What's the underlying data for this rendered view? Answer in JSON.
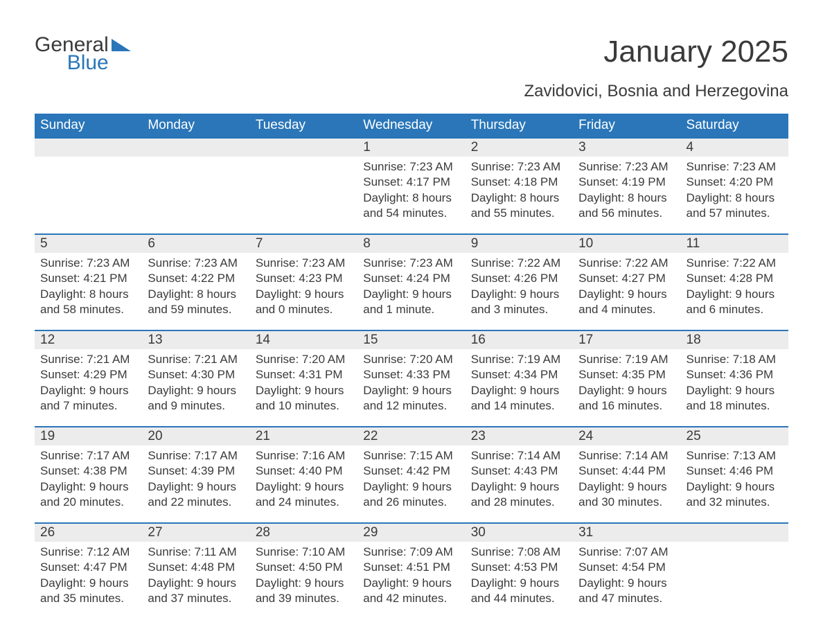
{
  "brand": {
    "word1": "General",
    "word2": "Blue"
  },
  "title": "January 2025",
  "location": "Zavidovici, Bosnia and Herzegovina",
  "colors": {
    "accent": "#2a76b9",
    "row_bg": "#ececec",
    "text": "#3a3a3a",
    "background": "#ffffff",
    "header_text": "#ffffff"
  },
  "calendar": {
    "type": "table",
    "day_headers": [
      "Sunday",
      "Monday",
      "Tuesday",
      "Wednesday",
      "Thursday",
      "Friday",
      "Saturday"
    ],
    "header_fontsize": 19,
    "daynum_fontsize": 19,
    "body_fontsize": 17,
    "row_border_top_width": 2,
    "weeks": [
      [
        null,
        null,
        null,
        {
          "n": "1",
          "sunrise": "Sunrise: 7:23 AM",
          "sunset": "Sunset: 4:17 PM",
          "d1": "Daylight: 8 hours",
          "d2": "and 54 minutes."
        },
        {
          "n": "2",
          "sunrise": "Sunrise: 7:23 AM",
          "sunset": "Sunset: 4:18 PM",
          "d1": "Daylight: 8 hours",
          "d2": "and 55 minutes."
        },
        {
          "n": "3",
          "sunrise": "Sunrise: 7:23 AM",
          "sunset": "Sunset: 4:19 PM",
          "d1": "Daylight: 8 hours",
          "d2": "and 56 minutes."
        },
        {
          "n": "4",
          "sunrise": "Sunrise: 7:23 AM",
          "sunset": "Sunset: 4:20 PM",
          "d1": "Daylight: 8 hours",
          "d2": "and 57 minutes."
        }
      ],
      [
        {
          "n": "5",
          "sunrise": "Sunrise: 7:23 AM",
          "sunset": "Sunset: 4:21 PM",
          "d1": "Daylight: 8 hours",
          "d2": "and 58 minutes."
        },
        {
          "n": "6",
          "sunrise": "Sunrise: 7:23 AM",
          "sunset": "Sunset: 4:22 PM",
          "d1": "Daylight: 8 hours",
          "d2": "and 59 minutes."
        },
        {
          "n": "7",
          "sunrise": "Sunrise: 7:23 AM",
          "sunset": "Sunset: 4:23 PM",
          "d1": "Daylight: 9 hours",
          "d2": "and 0 minutes."
        },
        {
          "n": "8",
          "sunrise": "Sunrise: 7:23 AM",
          "sunset": "Sunset: 4:24 PM",
          "d1": "Daylight: 9 hours",
          "d2": "and 1 minute."
        },
        {
          "n": "9",
          "sunrise": "Sunrise: 7:22 AM",
          "sunset": "Sunset: 4:26 PM",
          "d1": "Daylight: 9 hours",
          "d2": "and 3 minutes."
        },
        {
          "n": "10",
          "sunrise": "Sunrise: 7:22 AM",
          "sunset": "Sunset: 4:27 PM",
          "d1": "Daylight: 9 hours",
          "d2": "and 4 minutes."
        },
        {
          "n": "11",
          "sunrise": "Sunrise: 7:22 AM",
          "sunset": "Sunset: 4:28 PM",
          "d1": "Daylight: 9 hours",
          "d2": "and 6 minutes."
        }
      ],
      [
        {
          "n": "12",
          "sunrise": "Sunrise: 7:21 AM",
          "sunset": "Sunset: 4:29 PM",
          "d1": "Daylight: 9 hours",
          "d2": "and 7 minutes."
        },
        {
          "n": "13",
          "sunrise": "Sunrise: 7:21 AM",
          "sunset": "Sunset: 4:30 PM",
          "d1": "Daylight: 9 hours",
          "d2": "and 9 minutes."
        },
        {
          "n": "14",
          "sunrise": "Sunrise: 7:20 AM",
          "sunset": "Sunset: 4:31 PM",
          "d1": "Daylight: 9 hours",
          "d2": "and 10 minutes."
        },
        {
          "n": "15",
          "sunrise": "Sunrise: 7:20 AM",
          "sunset": "Sunset: 4:33 PM",
          "d1": "Daylight: 9 hours",
          "d2": "and 12 minutes."
        },
        {
          "n": "16",
          "sunrise": "Sunrise: 7:19 AM",
          "sunset": "Sunset: 4:34 PM",
          "d1": "Daylight: 9 hours",
          "d2": "and 14 minutes."
        },
        {
          "n": "17",
          "sunrise": "Sunrise: 7:19 AM",
          "sunset": "Sunset: 4:35 PM",
          "d1": "Daylight: 9 hours",
          "d2": "and 16 minutes."
        },
        {
          "n": "18",
          "sunrise": "Sunrise: 7:18 AM",
          "sunset": "Sunset: 4:36 PM",
          "d1": "Daylight: 9 hours",
          "d2": "and 18 minutes."
        }
      ],
      [
        {
          "n": "19",
          "sunrise": "Sunrise: 7:17 AM",
          "sunset": "Sunset: 4:38 PM",
          "d1": "Daylight: 9 hours",
          "d2": "and 20 minutes."
        },
        {
          "n": "20",
          "sunrise": "Sunrise: 7:17 AM",
          "sunset": "Sunset: 4:39 PM",
          "d1": "Daylight: 9 hours",
          "d2": "and 22 minutes."
        },
        {
          "n": "21",
          "sunrise": "Sunrise: 7:16 AM",
          "sunset": "Sunset: 4:40 PM",
          "d1": "Daylight: 9 hours",
          "d2": "and 24 minutes."
        },
        {
          "n": "22",
          "sunrise": "Sunrise: 7:15 AM",
          "sunset": "Sunset: 4:42 PM",
          "d1": "Daylight: 9 hours",
          "d2": "and 26 minutes."
        },
        {
          "n": "23",
          "sunrise": "Sunrise: 7:14 AM",
          "sunset": "Sunset: 4:43 PM",
          "d1": "Daylight: 9 hours",
          "d2": "and 28 minutes."
        },
        {
          "n": "24",
          "sunrise": "Sunrise: 7:14 AM",
          "sunset": "Sunset: 4:44 PM",
          "d1": "Daylight: 9 hours",
          "d2": "and 30 minutes."
        },
        {
          "n": "25",
          "sunrise": "Sunrise: 7:13 AM",
          "sunset": "Sunset: 4:46 PM",
          "d1": "Daylight: 9 hours",
          "d2": "and 32 minutes."
        }
      ],
      [
        {
          "n": "26",
          "sunrise": "Sunrise: 7:12 AM",
          "sunset": "Sunset: 4:47 PM",
          "d1": "Daylight: 9 hours",
          "d2": "and 35 minutes."
        },
        {
          "n": "27",
          "sunrise": "Sunrise: 7:11 AM",
          "sunset": "Sunset: 4:48 PM",
          "d1": "Daylight: 9 hours",
          "d2": "and 37 minutes."
        },
        {
          "n": "28",
          "sunrise": "Sunrise: 7:10 AM",
          "sunset": "Sunset: 4:50 PM",
          "d1": "Daylight: 9 hours",
          "d2": "and 39 minutes."
        },
        {
          "n": "29",
          "sunrise": "Sunrise: 7:09 AM",
          "sunset": "Sunset: 4:51 PM",
          "d1": "Daylight: 9 hours",
          "d2": "and 42 minutes."
        },
        {
          "n": "30",
          "sunrise": "Sunrise: 7:08 AM",
          "sunset": "Sunset: 4:53 PM",
          "d1": "Daylight: 9 hours",
          "d2": "and 44 minutes."
        },
        {
          "n": "31",
          "sunrise": "Sunrise: 7:07 AM",
          "sunset": "Sunset: 4:54 PM",
          "d1": "Daylight: 9 hours",
          "d2": "and 47 minutes."
        },
        null
      ]
    ]
  }
}
